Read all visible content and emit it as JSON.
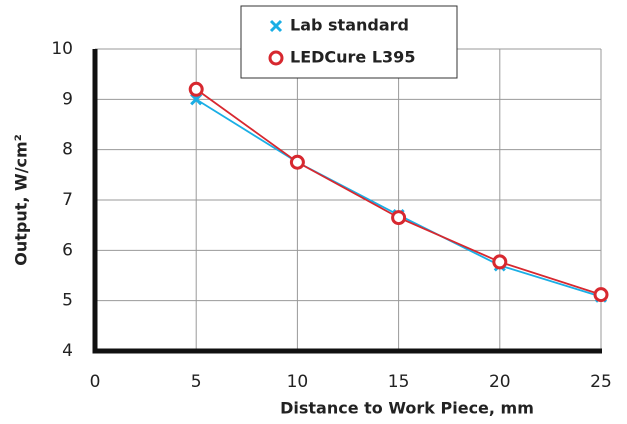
{
  "chart_data": {
    "type": "line",
    "x": [
      5,
      10,
      15,
      20,
      25
    ],
    "series": [
      {
        "name": "Lab standard",
        "color": "#1aaee5",
        "marker": "x",
        "values": [
          9.0,
          7.75,
          6.7,
          5.7,
          5.08
        ]
      },
      {
        "name": "LEDCure L395",
        "color": "#d7282f",
        "marker": "o",
        "values": [
          9.2,
          7.75,
          6.65,
          5.77,
          5.12
        ]
      }
    ],
    "xlabel": "Distance to Work Piece, mm",
    "ylabel": "Output, W/cm²",
    "xlim": [
      0,
      25
    ],
    "xticks": [
      0,
      5,
      10,
      15,
      20,
      25
    ],
    "ylim": [
      4,
      10
    ],
    "yticks": [
      4,
      5,
      6,
      7,
      8,
      9,
      10
    ],
    "grid": true,
    "legend": "top"
  }
}
